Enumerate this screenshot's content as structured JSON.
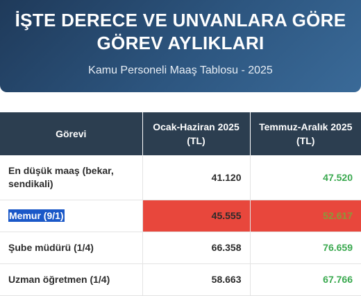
{
  "banner": {
    "title": "İŞTE DERECE VE UNVANLARA GÖRE GÖREV AYLIKLARI",
    "subtitle": "Kamu Personeli Maaş Tablosu - 2025"
  },
  "table": {
    "headers": [
      "Görevi",
      "Ocak-Haziran 2025 (TL)",
      "Temmuz-Aralık 2025 (TL)"
    ],
    "rows": [
      {
        "role": "En düşük maaş (bekar, sendikali)",
        "h1": "41.120",
        "h2": "47.520"
      },
      {
        "role": "Memur (9/1)",
        "h1": "45.555",
        "h2": "52.617"
      },
      {
        "role": "Şube müdürü (1/4)",
        "h1": "66.358",
        "h2": "76.659"
      },
      {
        "role": "Uzman öğretmen (1/4)",
        "h1": "58.663",
        "h2": "67.766"
      }
    ]
  },
  "colors": {
    "banner_bg": "#2d5680",
    "header_bg": "#2c3e50",
    "highlight_row": "#e8473c",
    "positive_value": "#3aa94f",
    "text_selection": "#1a58c8"
  }
}
